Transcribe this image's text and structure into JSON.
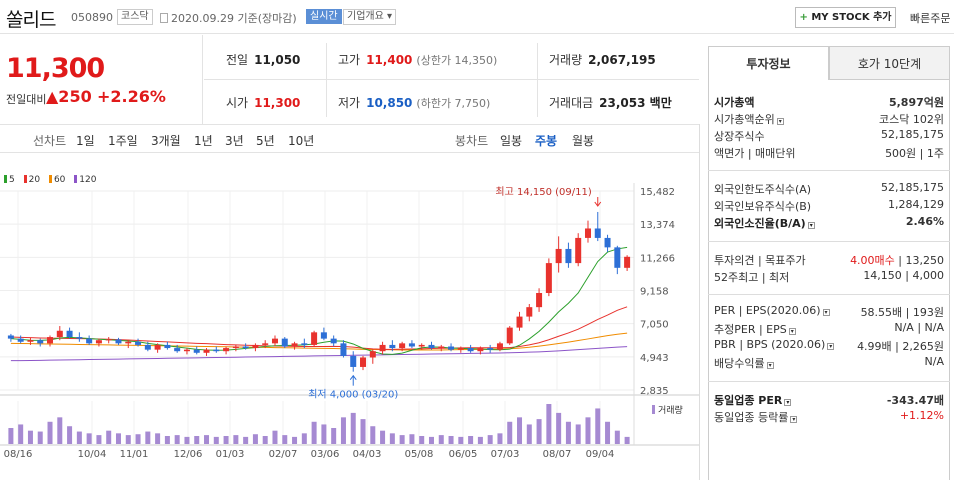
{
  "header": {
    "name": "쏠리드",
    "code": "050890",
    "market": "코스닥",
    "date": "2020.09.29 기준(장마감)",
    "realtime": "실시간",
    "overview": "기업개요 ▾",
    "mystock_plus": "+",
    "mystock": "MY STOCK 추가",
    "quick": "빠른주문"
  },
  "price": {
    "value": "11,300",
    "change_label": "전일대비",
    "change_value": "▲250",
    "change_pct": "+2.26%"
  },
  "stats": {
    "prev_close_label": "전일",
    "prev_close": "11,050",
    "open_label": "시가",
    "open": "11,300",
    "high_label": "고가",
    "high": "11,400",
    "upper_limit": "(상한가 14,350)",
    "low_label": "저가",
    "low": "10,850",
    "lower_limit": "(하한가 7,750)",
    "volume_label": "거래량",
    "volume": "2,067,195",
    "amount_label": "거래대금",
    "amount": "23,053 백만"
  },
  "chart_tabs": {
    "line_label": "선차트",
    "line": [
      "1일",
      "1주일",
      "3개월",
      "1년",
      "3년",
      "5년",
      "10년"
    ],
    "candle_label": "봉차트",
    "candle": [
      "일봉",
      "주봉",
      "월봉"
    ],
    "selected": "주봉"
  },
  "chart_data": {
    "type": "candlestick",
    "ma_legend": [
      {
        "name": "5",
        "color": "#2ca02c"
      },
      {
        "name": "20",
        "color": "#e8322d"
      },
      {
        "name": "60",
        "color": "#f08c00"
      },
      {
        "name": "120",
        "color": "#8c55c8"
      }
    ],
    "y_ticks": [
      "15,482",
      "13,374",
      "11,266",
      "9,158",
      "7,050",
      "4,943",
      "2,835"
    ],
    "x_ticks": [
      "08/16",
      "10/04",
      "11/01",
      "12/06",
      "01/03",
      "02/07",
      "03/06",
      "04/03",
      "05/08",
      "06/05",
      "07/03",
      "08/07",
      "09/04"
    ],
    "high_note": "최고 14,150 (09/11)",
    "low_note": "최저 4,000 (03/20)",
    "volume_label": "거래량",
    "candles": [
      [
        6300,
        6400,
        5900,
        6100
      ],
      [
        6100,
        6300,
        5800,
        5900
      ],
      [
        5900,
        6150,
        5700,
        6000
      ],
      [
        6000,
        6100,
        5600,
        5800
      ],
      [
        5800,
        6300,
        5600,
        6200
      ],
      [
        6200,
        6900,
        6000,
        6600
      ],
      [
        6600,
        6800,
        6100,
        6200
      ],
      [
        6200,
        6500,
        5900,
        6100
      ],
      [
        6100,
        6300,
        5700,
        5800
      ],
      [
        5800,
        6100,
        5600,
        6000
      ],
      [
        6000,
        6200,
        5800,
        6050
      ],
      [
        6050,
        6150,
        5700,
        5800
      ],
      [
        5800,
        6000,
        5500,
        5900
      ],
      [
        5900,
        6100,
        5600,
        5700
      ],
      [
        5700,
        5900,
        5300,
        5400
      ],
      [
        5400,
        5800,
        5200,
        5700
      ],
      [
        5700,
        5900,
        5400,
        5500
      ],
      [
        5500,
        5700,
        5200,
        5300
      ],
      [
        5300,
        5500,
        5100,
        5400
      ],
      [
        5400,
        5600,
        5100,
        5200
      ],
      [
        5200,
        5500,
        5000,
        5400
      ],
      [
        5400,
        5600,
        5200,
        5300
      ],
      [
        5300,
        5600,
        5100,
        5500
      ],
      [
        5500,
        5700,
        5300,
        5600
      ],
      [
        5600,
        5800,
        5400,
        5500
      ],
      [
        5500,
        5800,
        5300,
        5700
      ],
      [
        5700,
        6000,
        5500,
        5800
      ],
      [
        5800,
        6300,
        5600,
        6100
      ],
      [
        6100,
        6200,
        5500,
        5600
      ],
      [
        5600,
        5900,
        5400,
        5800
      ],
      [
        5800,
        6100,
        5500,
        5700
      ],
      [
        5700,
        6600,
        5600,
        6500
      ],
      [
        6500,
        6800,
        6000,
        6100
      ],
      [
        6100,
        6300,
        5600,
        5800
      ],
      [
        5800,
        6000,
        4900,
        5000
      ],
      [
        5000,
        5300,
        4000,
        4300
      ],
      [
        4300,
        5000,
        4100,
        4900
      ],
      [
        4900,
        5400,
        4500,
        5300
      ],
      [
        5300,
        5900,
        5100,
        5700
      ],
      [
        5700,
        6000,
        5300,
        5500
      ],
      [
        5500,
        5900,
        5300,
        5800
      ],
      [
        5800,
        6000,
        5500,
        5600
      ],
      [
        5600,
        5800,
        5400,
        5700
      ],
      [
        5700,
        5900,
        5400,
        5500
      ],
      [
        5500,
        5700,
        5300,
        5600
      ],
      [
        5600,
        5800,
        5300,
        5400
      ],
      [
        5400,
        5600,
        5200,
        5500
      ],
      [
        5500,
        5700,
        5200,
        5300
      ],
      [
        5300,
        5600,
        5100,
        5500
      ],
      [
        5500,
        5700,
        5200,
        5400
      ],
      [
        5400,
        5900,
        5300,
        5800
      ],
      [
        5800,
        6900,
        5700,
        6800
      ],
      [
        6800,
        7800,
        6600,
        7500
      ],
      [
        7500,
        8300,
        7200,
        8100
      ],
      [
        8100,
        9300,
        7800,
        9000
      ],
      [
        9000,
        11200,
        8800,
        10900
      ],
      [
        10900,
        12600,
        10300,
        11800
      ],
      [
        11800,
        12200,
        10600,
        10900
      ],
      [
        10900,
        12800,
        10700,
        12500
      ],
      [
        12500,
        13600,
        12200,
        13100
      ],
      [
        13100,
        14150,
        12300,
        12500
      ],
      [
        12500,
        12700,
        11600,
        11900
      ],
      [
        11900,
        12000,
        10200,
        10600
      ],
      [
        10600,
        11400,
        10400,
        11300
      ]
    ],
    "ma5": [
      6100,
      6050,
      6000,
      5990,
      6020,
      6140,
      6180,
      6150,
      6110,
      6060,
      6030,
      5990,
      5950,
      5900,
      5800,
      5720,
      5650,
      5570,
      5500,
      5420,
      5380,
      5360,
      5370,
      5420,
      5480,
      5530,
      5600,
      5650,
      5660,
      5680,
      5700,
      5760,
      5870,
      5960,
      5940,
      5760,
      5480,
      5280,
      5120,
      5100,
      5180,
      5360,
      5520,
      5570,
      5560,
      5500,
      5480,
      5460,
      5440,
      5400,
      5390,
      5430,
      5680,
      6080,
      6560,
      7150,
      7800,
      8350,
      9000,
      10000,
      11000,
      11600,
      11800,
      11900
    ],
    "ma20": [
      6200,
      6180,
      6160,
      6140,
      6130,
      6120,
      6110,
      6100,
      6090,
      6080,
      6060,
      6040,
      6010,
      5980,
      5950,
      5920,
      5890,
      5860,
      5830,
      5800,
      5780,
      5750,
      5720,
      5700,
      5680,
      5660,
      5640,
      5630,
      5620,
      5610,
      5600,
      5600,
      5600,
      5610,
      5600,
      5560,
      5500,
      5450,
      5420,
      5420,
      5430,
      5440,
      5450,
      5470,
      5490,
      5500,
      5510,
      5520,
      5520,
      5520,
      5520,
      5530,
      5600,
      5700,
      5840,
      6030,
      6250,
      6460,
      6700,
      7000,
      7320,
      7600,
      7900,
      8120
    ],
    "ma60": [
      5800,
      5790,
      5780,
      5770,
      5760,
      5750,
      5740,
      5730,
      5720,
      5710,
      5700,
      5690,
      5680,
      5670,
      5660,
      5650,
      5640,
      5630,
      5620,
      5610,
      5600,
      5590,
      5580,
      5570,
      5560,
      5550,
      5540,
      5530,
      5520,
      5510,
      5500,
      5490,
      5480,
      5470,
      5460,
      5440,
      5420,
      5410,
      5400,
      5390,
      5380,
      5380,
      5380,
      5380,
      5380,
      5390,
      5400,
      5410,
      5420,
      5430,
      5440,
      5460,
      5500,
      5550,
      5620,
      5700,
      5790,
      5880,
      5980,
      6080,
      6190,
      6290,
      6380,
      6450
    ],
    "ma120": [
      4700,
      4700,
      4710,
      4720,
      4730,
      4740,
      4750,
      4760,
      4770,
      4780,
      4790,
      4800,
      4810,
      4820,
      4830,
      4840,
      4850,
      4860,
      4870,
      4880,
      4890,
      4900,
      4910,
      4920,
      4930,
      4940,
      4950,
      4960,
      4970,
      4980,
      4990,
      5000,
      5010,
      5020,
      5030,
      5040,
      5050,
      5060,
      5070,
      5080,
      5090,
      5100,
      5110,
      5120,
      5130,
      5140,
      5150,
      5160,
      5170,
      5180,
      5190,
      5200,
      5220,
      5240,
      5260,
      5290,
      5320,
      5360,
      5400,
      5440,
      5480,
      5520,
      5560,
      5590
    ],
    "volume": [
      18,
      22,
      15,
      14,
      25,
      30,
      20,
      14,
      12,
      10,
      15,
      12,
      10,
      11,
      14,
      12,
      9,
      10,
      8,
      9,
      10,
      8,
      9,
      10,
      8,
      11,
      9,
      15,
      10,
      8,
      12,
      25,
      22,
      18,
      30,
      35,
      28,
      20,
      15,
      12,
      10,
      11,
      9,
      8,
      10,
      9,
      8,
      9,
      8,
      10,
      12,
      25,
      30,
      22,
      28,
      45,
      35,
      25,
      22,
      30,
      40,
      25,
      15,
      8
    ]
  },
  "right_panel": {
    "tab_info": "투자정보",
    "tab_quote": "호가 10단계",
    "rows1": [
      {
        "k": "시가총액",
        "v": "5,897억원",
        "bold": true
      },
      {
        "k": "시가총액순위",
        "v": "코스닥 102위",
        "info": true
      },
      {
        "k": "상장주식수",
        "v": "52,185,175"
      },
      {
        "k": "액면가 | 매매단위",
        "v": "500원 | 1주"
      }
    ],
    "rows2": [
      {
        "k": "외국인한도주식수(A)",
        "v": "52,185,175"
      },
      {
        "k": "외국인보유주식수(B)",
        "v": "1,284,129"
      },
      {
        "k": "외국인소진율(B/A)",
        "v": "2.46%",
        "bold": true,
        "info": true
      }
    ],
    "rows3": [
      {
        "k": "투자의견 | 목표주가",
        "v_red": "4.00매수",
        "v": " | 13,250"
      },
      {
        "k": "52주최고 | 최저",
        "v": "14,150 | 4,000"
      }
    ],
    "rows4": [
      {
        "k": "PER | EPS(2020.06)",
        "v": "58.55배 | 193원",
        "info": true
      },
      {
        "k": "추정PER | EPS",
        "v": "N/A | N/A",
        "info": true
      },
      {
        "k": "PBR | BPS (2020.06)",
        "v": "4.99배 | 2,265원",
        "info": true
      },
      {
        "k": "배당수익률",
        "v": "N/A",
        "info": true
      }
    ],
    "rows5": [
      {
        "k": "동일업종 PER",
        "v": "-343.47배",
        "bold": true,
        "info": true
      },
      {
        "k": "동일업종 등락률",
        "v": "+1.12%",
        "red": true,
        "info": true
      }
    ]
  }
}
